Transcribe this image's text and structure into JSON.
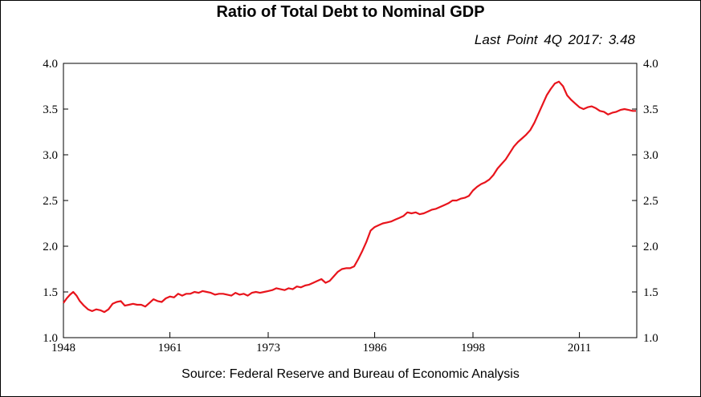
{
  "title": "Ratio of Total Debt to Nominal GDP",
  "subtitle": "Last Point 4Q 2017: 3.48",
  "source": "Source: Federal Reserve and Bureau of Economic Analysis",
  "chart_data": {
    "type": "line",
    "title": "Ratio of Total Debt to Nominal GDP",
    "xlabel": "",
    "ylabel": "",
    "xlim": [
      1948,
      2018
    ],
    "ylim": [
      1.0,
      4.0
    ],
    "x_ticks": [
      "1948",
      "1961",
      "1973",
      "1986",
      "1998",
      "2011"
    ],
    "y_ticks": [
      "1.0",
      "1.5",
      "2.0",
      "2.5",
      "3.0",
      "3.5",
      "4.0"
    ],
    "grid": false,
    "legend": "none",
    "line_color": "#e8141c",
    "series": [
      {
        "x": [
          1948.0,
          1948.4,
          1948.8,
          1949.2,
          1949.6,
          1950.0,
          1950.5,
          1951.0,
          1951.5,
          1952.0,
          1952.5,
          1953.0,
          1953.5,
          1954.0,
          1954.5,
          1955.0,
          1955.5,
          1956.0,
          1956.5,
          1957.0,
          1957.5,
          1958.0,
          1958.5,
          1959.0,
          1959.5,
          1960.0,
          1960.5,
          1961.0,
          1961.5,
          1962.0,
          1962.5,
          1963.0,
          1963.5,
          1964.0,
          1964.5,
          1965.0,
          1965.5,
          1966.0,
          1966.5,
          1967.0,
          1967.5,
          1968.0,
          1968.5,
          1969.0,
          1969.5,
          1970.0,
          1970.5,
          1971.0,
          1971.5,
          1972.0,
          1972.5,
          1973.0,
          1973.5,
          1974.0,
          1974.5,
          1975.0,
          1975.5,
          1976.0,
          1976.5,
          1977.0,
          1977.5,
          1978.0,
          1978.5,
          1979.0,
          1979.5,
          1980.0,
          1980.5,
          1981.0,
          1981.5,
          1982.0,
          1982.5,
          1983.0,
          1983.5,
          1984.0,
          1984.5,
          1985.0,
          1985.5,
          1986.0,
          1986.5,
          1987.0,
          1987.5,
          1988.0,
          1988.5,
          1989.0,
          1989.5,
          1990.0,
          1990.5,
          1991.0,
          1991.5,
          1992.0,
          1992.5,
          1993.0,
          1993.5,
          1994.0,
          1994.5,
          1995.0,
          1995.5,
          1996.0,
          1996.5,
          1997.0,
          1997.5,
          1998.0,
          1998.5,
          1999.0,
          1999.5,
          2000.0,
          2000.5,
          2001.0,
          2001.5,
          2002.0,
          2002.5,
          2003.0,
          2003.5,
          2004.0,
          2004.5,
          2005.0,
          2005.5,
          2006.0,
          2006.5,
          2007.0,
          2007.5,
          2008.0,
          2008.5,
          2009.0,
          2009.5,
          2010.0,
          2010.5,
          2011.0,
          2011.5,
          2012.0,
          2012.5,
          2013.0,
          2013.5,
          2014.0,
          2014.5,
          2015.0,
          2015.5,
          2016.0,
          2016.5,
          2017.0,
          2017.5,
          2017.9
        ],
        "y": [
          1.38,
          1.43,
          1.47,
          1.5,
          1.46,
          1.4,
          1.35,
          1.31,
          1.29,
          1.31,
          1.3,
          1.28,
          1.31,
          1.37,
          1.39,
          1.4,
          1.35,
          1.36,
          1.37,
          1.36,
          1.36,
          1.34,
          1.38,
          1.42,
          1.4,
          1.39,
          1.43,
          1.45,
          1.44,
          1.48,
          1.46,
          1.48,
          1.48,
          1.5,
          1.49,
          1.51,
          1.5,
          1.49,
          1.47,
          1.48,
          1.48,
          1.47,
          1.46,
          1.49,
          1.47,
          1.48,
          1.46,
          1.49,
          1.5,
          1.49,
          1.5,
          1.51,
          1.52,
          1.54,
          1.53,
          1.52,
          1.54,
          1.53,
          1.56,
          1.55,
          1.57,
          1.58,
          1.6,
          1.62,
          1.64,
          1.6,
          1.62,
          1.67,
          1.72,
          1.75,
          1.76,
          1.76,
          1.78,
          1.86,
          1.95,
          2.05,
          2.17,
          2.21,
          2.23,
          2.25,
          2.26,
          2.27,
          2.29,
          2.31,
          2.33,
          2.37,
          2.36,
          2.37,
          2.35,
          2.36,
          2.38,
          2.4,
          2.41,
          2.43,
          2.45,
          2.47,
          2.5,
          2.5,
          2.52,
          2.53,
          2.55,
          2.61,
          2.65,
          2.68,
          2.7,
          2.73,
          2.78,
          2.85,
          2.9,
          2.95,
          3.02,
          3.09,
          3.14,
          3.18,
          3.22,
          3.27,
          3.35,
          3.45,
          3.55,
          3.65,
          3.72,
          3.78,
          3.8,
          3.75,
          3.65,
          3.6,
          3.56,
          3.52,
          3.5,
          3.52,
          3.53,
          3.51,
          3.48,
          3.47,
          3.44,
          3.46,
          3.47,
          3.49,
          3.5,
          3.49,
          3.48,
          3.48
        ]
      }
    ]
  }
}
